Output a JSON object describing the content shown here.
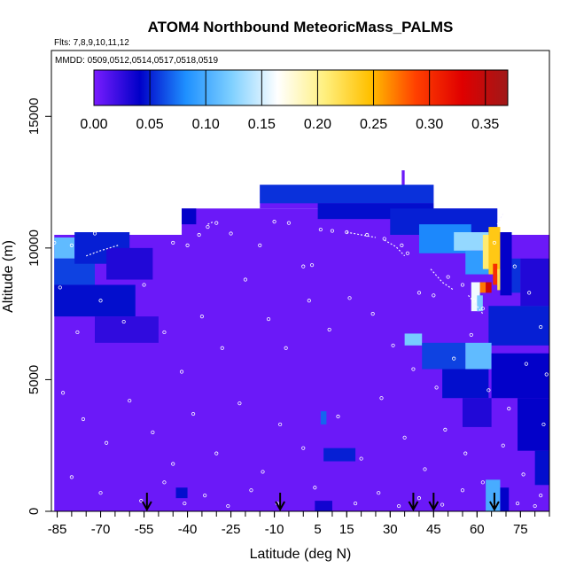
{
  "chart_data": {
    "type": "heatmap",
    "title": "ATOM4 Northbound MeteoricMass_PALMS",
    "flights_text": "Flts: 7,8,9,10,11,12",
    "dates_text": "MMDD: 0509,0512,0514,0517,0518,0519",
    "xlabel": "Latitude (deg N)",
    "ylabel": "Altitude (m)",
    "xlim": [
      -87,
      85
    ],
    "ylim": [
      0,
      17500
    ],
    "x_ticks": [
      -85,
      -70,
      -55,
      -40,
      -25,
      -10,
      5,
      15,
      30,
      45,
      60,
      75
    ],
    "x_tick_labels": [
      "-85",
      "-70",
      "-55",
      "-40",
      "-25",
      "-10",
      "5",
      "15",
      "30",
      "45",
      "60",
      "75"
    ],
    "y_ticks": [
      0,
      5000,
      10000,
      15000
    ],
    "y_tick_labels": [
      "0",
      "5000",
      "10000",
      "15000"
    ],
    "colorbar": {
      "min": 0,
      "max": 0.37,
      "ticks": [
        0.0,
        0.05,
        0.1,
        0.15,
        0.2,
        0.25,
        0.3,
        0.35
      ],
      "tick_labels": [
        "0.00",
        "0.05",
        "0.10",
        "0.15",
        "0.20",
        "0.25",
        "0.30",
        "0.35"
      ],
      "colors": [
        "#7a1cff",
        "#0000c8",
        "#1e90ff",
        "#7fd0ff",
        "#ffffff",
        "#fff080",
        "#ffc000",
        "#ff4000",
        "#e00000",
        "#a01818"
      ]
    },
    "background_value": 0.005,
    "data_extent": [
      {
        "x0": -86,
        "x1": 85,
        "y0": 0,
        "y1": 10500
      },
      {
        "x0": -42,
        "x1": 67,
        "y0": 10500,
        "y1": 11500
      },
      {
        "x0": -15,
        "x1": 45,
        "y0": 11500,
        "y1": 12400
      },
      {
        "x0": 34,
        "x1": 35,
        "y0": 12400,
        "y1": 12950
      }
    ],
    "cells": [
      {
        "x0": -86,
        "x1": -79,
        "y0": 9600,
        "y1": 10400,
        "v": 0.11
      },
      {
        "x0": -86,
        "x1": -72,
        "y0": 8600,
        "y1": 9600,
        "v": 0.06
      },
      {
        "x0": -79,
        "x1": -60,
        "y0": 9400,
        "y1": 10600,
        "v": 0.05
      },
      {
        "x0": -68,
        "x1": -52,
        "y0": 8800,
        "y1": 10000,
        "v": 0.03
      },
      {
        "x0": -86,
        "x1": -58,
        "y0": 7400,
        "y1": 8600,
        "v": 0.045
      },
      {
        "x0": -72,
        "x1": -50,
        "y0": 6400,
        "y1": 7400,
        "v": 0.025
      },
      {
        "x0": -42,
        "x1": -37,
        "y0": 10900,
        "y1": 11500,
        "v": 0.04
      },
      {
        "x0": -15,
        "x1": 45,
        "y0": 11700,
        "y1": 12400,
        "v": 0.055
      },
      {
        "x0": 5,
        "x1": 45,
        "y0": 11100,
        "y1": 11700,
        "v": 0.045
      },
      {
        "x0": 30,
        "x1": 67,
        "y0": 10500,
        "y1": 11500,
        "v": 0.05
      },
      {
        "x0": 40,
        "x1": 58,
        "y0": 9800,
        "y1": 10900,
        "v": 0.08
      },
      {
        "x0": 52,
        "x1": 64,
        "y0": 9900,
        "y1": 10600,
        "v": 0.13
      },
      {
        "x0": 56,
        "x1": 64,
        "y0": 9000,
        "y1": 9900,
        "v": 0.09
      },
      {
        "x0": 62,
        "x1": 66,
        "y0": 9200,
        "y1": 10500,
        "v": 0.21
      },
      {
        "x0": 64,
        "x1": 68,
        "y0": 9000,
        "y1": 10800,
        "v": 0.24
      },
      {
        "x0": 65.5,
        "x1": 67,
        "y0": 8600,
        "y1": 9400,
        "v": 0.3
      },
      {
        "x0": 67,
        "x1": 69,
        "y0": 8400,
        "y1": 9200,
        "v": 0.22
      },
      {
        "x0": 61,
        "x1": 63,
        "y0": 8300,
        "y1": 8700,
        "v": 0.27
      },
      {
        "x0": 63,
        "x1": 65,
        "y0": 8300,
        "y1": 8700,
        "v": 0.34
      },
      {
        "x0": 58,
        "x1": 61,
        "y0": 7600,
        "y1": 8700,
        "v": 0.16
      },
      {
        "x0": 60,
        "x1": 62,
        "y0": 7600,
        "y1": 8200,
        "v": 0.12
      },
      {
        "x0": 68,
        "x1": 72,
        "y0": 8200,
        "y1": 10600,
        "v": 0.04
      },
      {
        "x0": 72,
        "x1": 75,
        "y0": 8300,
        "y1": 9600,
        "v": 0.055
      },
      {
        "x0": 75,
        "x1": 85,
        "y0": 7800,
        "y1": 9600,
        "v": 0.03
      },
      {
        "x0": 64,
        "x1": 85,
        "y0": 6300,
        "y1": 7800,
        "v": 0.05
      },
      {
        "x0": 35,
        "x1": 41,
        "y0": 6300,
        "y1": 6750,
        "v": 0.12
      },
      {
        "x0": 41,
        "x1": 56,
        "y0": 5400,
        "y1": 6400,
        "v": 0.06
      },
      {
        "x0": 56,
        "x1": 65,
        "y0": 5400,
        "y1": 6400,
        "v": 0.11
      },
      {
        "x0": 48,
        "x1": 64,
        "y0": 4300,
        "y1": 5400,
        "v": 0.045
      },
      {
        "x0": 65,
        "x1": 85,
        "y0": 4300,
        "y1": 6000,
        "v": 0.04
      },
      {
        "x0": 55,
        "x1": 65,
        "y0": 3200,
        "y1": 4300,
        "v": 0.03
      },
      {
        "x0": 74,
        "x1": 85,
        "y0": 2300,
        "y1": 4300,
        "v": 0.04
      },
      {
        "x0": 6,
        "x1": 8,
        "y0": 3300,
        "y1": 3800,
        "v": 0.07
      },
      {
        "x0": 7,
        "x1": 18,
        "y0": 1900,
        "y1": 2400,
        "v": 0.05
      },
      {
        "x0": 80,
        "x1": 85,
        "y0": 1000,
        "y1": 2300,
        "v": 0.045
      },
      {
        "x0": 63,
        "x1": 68,
        "y0": 0,
        "y1": 1200,
        "v": 0.1
      },
      {
        "x0": 68,
        "x1": 71,
        "y0": 0,
        "y1": 900,
        "v": 0.04
      },
      {
        "x0": -44,
        "x1": -40,
        "y0": 500,
        "y1": 900,
        "v": 0.045
      },
      {
        "x0": 4,
        "x1": 10,
        "y0": 0,
        "y1": 400,
        "v": 0.035
      }
    ],
    "sample_points": [
      {
        "x": -86,
        "y": 10200
      },
      {
        "x": -80,
        "y": 10100
      },
      {
        "x": -72,
        "y": 10550
      },
      {
        "x": -65,
        "y": 10900
      },
      {
        "x": -60,
        "y": 10950
      },
      {
        "x": -58,
        "y": 10980
      },
      {
        "x": -50,
        "y": 10950
      },
      {
        "x": -45,
        "y": 10200
      },
      {
        "x": -40,
        "y": 10100
      },
      {
        "x": -36,
        "y": 10500
      },
      {
        "x": -33,
        "y": 10800
      },
      {
        "x": -30,
        "y": 10950
      },
      {
        "x": -25,
        "y": 10550
      },
      {
        "x": -20,
        "y": 11800
      },
      {
        "x": -15,
        "y": 10100
      },
      {
        "x": -10,
        "y": 11000
      },
      {
        "x": -5,
        "y": 10950
      },
      {
        "x": 0,
        "y": 9300
      },
      {
        "x": 3,
        "y": 9350
      },
      {
        "x": 6,
        "y": 10700
      },
      {
        "x": 10,
        "y": 10650
      },
      {
        "x": 15,
        "y": 10600
      },
      {
        "x": 22,
        "y": 10500
      },
      {
        "x": 28,
        "y": 10350
      },
      {
        "x": 34,
        "y": 10100
      },
      {
        "x": 36,
        "y": 9800
      },
      {
        "x": 40,
        "y": 8300
      },
      {
        "x": 45,
        "y": 8200
      },
      {
        "x": 50,
        "y": 8900
      },
      {
        "x": 55,
        "y": 8600
      },
      {
        "x": 59,
        "y": 8000
      },
      {
        "x": 62,
        "y": 7700
      },
      {
        "x": 66,
        "y": 10200
      },
      {
        "x": 68,
        "y": 10900
      },
      {
        "x": 70,
        "y": 11000
      },
      {
        "x": 73,
        "y": 9300
      },
      {
        "x": 78,
        "y": 8300
      },
      {
        "x": 82,
        "y": 7000
      },
      {
        "x": 84,
        "y": 5200
      },
      {
        "x": -84,
        "y": 8500
      },
      {
        "x": -78,
        "y": 6800
      },
      {
        "x": -70,
        "y": 8000
      },
      {
        "x": -62,
        "y": 7200
      },
      {
        "x": -55,
        "y": 8600
      },
      {
        "x": -48,
        "y": 6800
      },
      {
        "x": -42,
        "y": 5300
      },
      {
        "x": -35,
        "y": 7400
      },
      {
        "x": -28,
        "y": 6200
      },
      {
        "x": -20,
        "y": 8800
      },
      {
        "x": -12,
        "y": 7300
      },
      {
        "x": -6,
        "y": 6200
      },
      {
        "x": 2,
        "y": 8000
      },
      {
        "x": 9,
        "y": 6900
      },
      {
        "x": 16,
        "y": 8100
      },
      {
        "x": 24,
        "y": 7500
      },
      {
        "x": 31,
        "y": 6300
      },
      {
        "x": 38,
        "y": 5400
      },
      {
        "x": 46,
        "y": 4700
      },
      {
        "x": 52,
        "y": 5800
      },
      {
        "x": 58,
        "y": 6700
      },
      {
        "x": 64,
        "y": 4600
      },
      {
        "x": 71,
        "y": 3900
      },
      {
        "x": 77,
        "y": 5600
      },
      {
        "x": 83,
        "y": 3300
      },
      {
        "x": -83,
        "y": 4500
      },
      {
        "x": -76,
        "y": 3500
      },
      {
        "x": -68,
        "y": 2600
      },
      {
        "x": -60,
        "y": 4200
      },
      {
        "x": -52,
        "y": 3000
      },
      {
        "x": -45,
        "y": 1800
      },
      {
        "x": -38,
        "y": 3700
      },
      {
        "x": -30,
        "y": 2200
      },
      {
        "x": -22,
        "y": 4100
      },
      {
        "x": -14,
        "y": 1500
      },
      {
        "x": -8,
        "y": 3300
      },
      {
        "x": 0,
        "y": 2400
      },
      {
        "x": 12,
        "y": 3600
      },
      {
        "x": 20,
        "y": 2000
      },
      {
        "x": 27,
        "y": 4300
      },
      {
        "x": 35,
        "y": 2800
      },
      {
        "x": 42,
        "y": 1600
      },
      {
        "x": 49,
        "y": 3100
      },
      {
        "x": 56,
        "y": 2200
      },
      {
        "x": 62,
        "y": 1100
      },
      {
        "x": 69,
        "y": 2500
      },
      {
        "x": 76,
        "y": 1400
      },
      {
        "x": 82,
        "y": 600
      },
      {
        "x": -80,
        "y": 1300
      },
      {
        "x": -70,
        "y": 700
      },
      {
        "x": -56,
        "y": 400
      },
      {
        "x": -48,
        "y": 1100
      },
      {
        "x": -41,
        "y": 300
      },
      {
        "x": -34,
        "y": 600
      },
      {
        "x": -26,
        "y": 200
      },
      {
        "x": -18,
        "y": 800
      },
      {
        "x": -9,
        "y": 300
      },
      {
        "x": 4,
        "y": 900
      },
      {
        "x": 18,
        "y": 300
      },
      {
        "x": 26,
        "y": 700
      },
      {
        "x": 33,
        "y": 200
      },
      {
        "x": 40,
        "y": 500
      },
      {
        "x": 48,
        "y": 250
      },
      {
        "x": 55,
        "y": 800
      },
      {
        "x": 66,
        "y": 200
      },
      {
        "x": 74,
        "y": 300
      },
      {
        "x": 80,
        "y": 200
      }
    ],
    "flight_path_segments": [
      [
        {
          "x": -75,
          "y": 9700
        },
        {
          "x": -70,
          "y": 9900
        },
        {
          "x": -64,
          "y": 10100
        }
      ],
      [
        {
          "x": -33,
          "y": 10900
        },
        {
          "x": -31,
          "y": 11000
        }
      ],
      [
        {
          "x": 15,
          "y": 10600
        },
        {
          "x": 20,
          "y": 10500
        },
        {
          "x": 25,
          "y": 10400
        }
      ],
      [
        {
          "x": 28,
          "y": 10300
        },
        {
          "x": 32,
          "y": 10050
        },
        {
          "x": 35,
          "y": 9700
        }
      ],
      [
        {
          "x": 44,
          "y": 9200
        },
        {
          "x": 48,
          "y": 8700
        },
        {
          "x": 52,
          "y": 8400
        }
      ],
      [
        {
          "x": 57,
          "y": 8200
        },
        {
          "x": 60,
          "y": 7800
        },
        {
          "x": 62,
          "y": 7500
        }
      ],
      [
        {
          "x": 67,
          "y": 10900
        },
        {
          "x": 68,
          "y": 11100
        },
        {
          "x": 69,
          "y": 11300
        }
      ]
    ],
    "arrow_markers_x": [
      -54,
      -8,
      38,
      45,
      66
    ]
  }
}
